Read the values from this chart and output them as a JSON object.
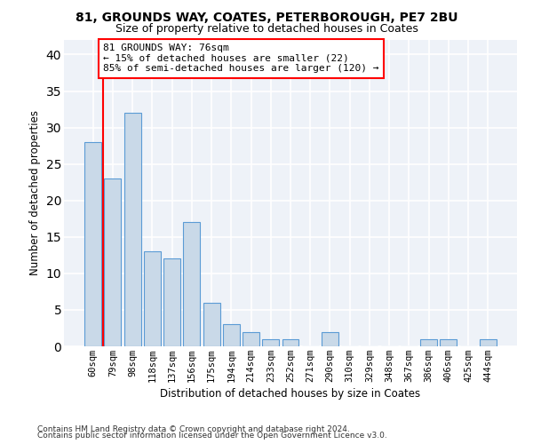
{
  "title1": "81, GROUNDS WAY, COATES, PETERBOROUGH, PE7 2BU",
  "title2": "Size of property relative to detached houses in Coates",
  "xlabel": "Distribution of detached houses by size in Coates",
  "ylabel": "Number of detached properties",
  "categories": [
    "60sqm",
    "79sqm",
    "98sqm",
    "118sqm",
    "137sqm",
    "156sqm",
    "175sqm",
    "194sqm",
    "214sqm",
    "233sqm",
    "252sqm",
    "271sqm",
    "290sqm",
    "310sqm",
    "329sqm",
    "348sqm",
    "367sqm",
    "386sqm",
    "406sqm",
    "425sqm",
    "444sqm"
  ],
  "values": [
    28,
    23,
    32,
    13,
    12,
    17,
    6,
    3,
    2,
    1,
    1,
    0,
    2,
    0,
    0,
    0,
    0,
    1,
    1,
    0,
    1
  ],
  "bar_color": "#c9d9e8",
  "bar_edgecolor": "#5b9bd5",
  "annotation_text": "81 GROUNDS WAY: 76sqm\n← 15% of detached houses are smaller (22)\n85% of semi-detached houses are larger (120) →",
  "annotation_box_color": "white",
  "annotation_box_edgecolor": "red",
  "vline_color": "red",
  "ylim": [
    0,
    42
  ],
  "yticks": [
    0,
    5,
    10,
    15,
    20,
    25,
    30,
    35,
    40
  ],
  "background_color": "#eef2f8",
  "grid_color": "white",
  "footer_line1": "Contains HM Land Registry data © Crown copyright and database right 2024.",
  "footer_line2": "Contains public sector information licensed under the Open Government Licence v3.0.",
  "title1_fontsize": 10,
  "title2_fontsize": 9,
  "xlabel_fontsize": 8.5,
  "ylabel_fontsize": 8.5,
  "tick_fontsize": 7.5,
  "annotation_fontsize": 8,
  "footer_fontsize": 6.5
}
